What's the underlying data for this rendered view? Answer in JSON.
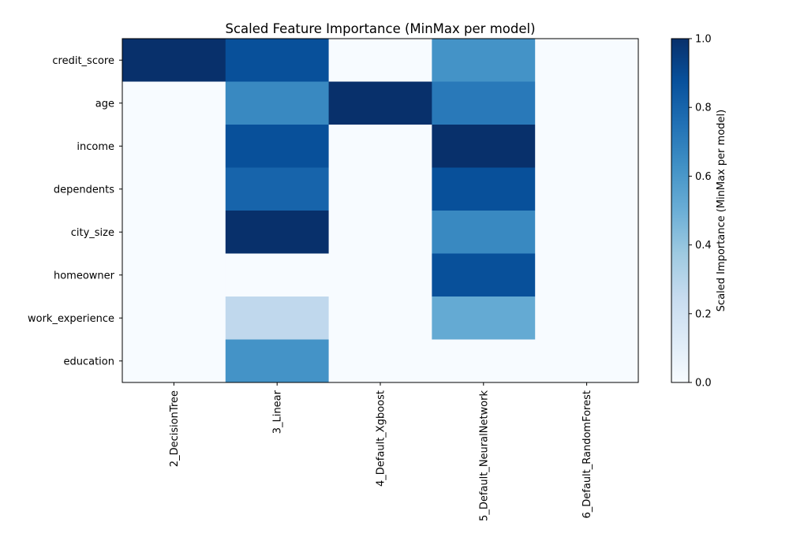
{
  "chart_data": {
    "type": "heatmap",
    "title": "Scaled Feature Importance (MinMax per model)",
    "xlabel": "",
    "ylabel": "",
    "x_categories": [
      "2_DecisionTree",
      "3_Linear",
      "4_Default_Xgboost",
      "5_Default_NeuralNetwork",
      "6_Default_RandomForest"
    ],
    "y_categories": [
      "credit_score",
      "age",
      "income",
      "dependents",
      "city_size",
      "homeowner",
      "work_experience",
      "education"
    ],
    "values": [
      [
        1.0,
        0.88,
        0.0,
        0.62,
        0.0
      ],
      [
        0.0,
        0.66,
        1.0,
        0.72,
        0.0
      ],
      [
        0.0,
        0.88,
        0.0,
        1.0,
        0.0
      ],
      [
        0.0,
        0.8,
        0.0,
        0.88,
        0.0
      ],
      [
        0.0,
        1.0,
        0.0,
        0.66,
        0.0
      ],
      [
        0.0,
        0.0,
        0.0,
        0.88,
        0.0
      ],
      [
        0.0,
        0.27,
        0.0,
        0.52,
        0.0
      ],
      [
        0.0,
        0.62,
        0.0,
        0.0,
        0.0
      ]
    ],
    "colormap": "Blues",
    "colorbar": {
      "label": "Scaled Importance (MinMax per model)",
      "range": [
        0.0,
        1.0
      ],
      "ticks": [
        "0.0",
        "0.2",
        "0.4",
        "0.6",
        "0.8",
        "1.0"
      ]
    },
    "grid": false
  }
}
